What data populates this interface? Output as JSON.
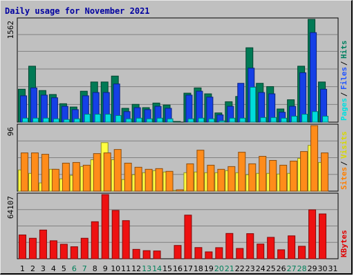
{
  "chart_data": {
    "type": "bar",
    "title": "Daily usage for November 2021",
    "categories": [
      "1",
      "2",
      "3",
      "4",
      "5",
      "6",
      "7",
      "8",
      "9",
      "10",
      "11",
      "12",
      "13",
      "14",
      "15",
      "16",
      "17",
      "18",
      "19",
      "20",
      "21",
      "22",
      "23",
      "24",
      "25",
      "26",
      "27",
      "28",
      "29",
      "30",
      "31"
    ],
    "weekend_days": [
      "6",
      "7",
      "13",
      "14",
      "20",
      "21",
      "27",
      "28"
    ],
    "panels": [
      {
        "name": "hits-files-pages",
        "max_label": "1562",
        "ymax": 1562,
        "legend": [
          {
            "text": "Pages",
            "color": "#00e0e0"
          },
          {
            "text": "Files",
            "color": "#2255ff"
          },
          {
            "text": "Hits",
            "color": "#008060"
          }
        ],
        "series": [
          {
            "name": "Hits",
            "color": "#007a55",
            "values": [
              500,
              850,
              480,
              420,
              280,
              230,
              470,
              610,
              610,
              700,
              210,
              270,
              220,
              290,
              260,
              10,
              440,
              520,
              430,
              140,
              310,
              390,
              1130,
              590,
              540,
              200,
              340,
              850,
              1562,
              610,
              0
            ]
          },
          {
            "name": "Files",
            "color": "#1540e6",
            "values": [
              400,
              520,
              410,
              370,
              240,
              190,
              400,
              450,
              450,
              580,
              160,
              220,
              190,
              240,
              210,
              5,
              410,
              470,
              380,
              110,
              240,
              590,
              820,
              450,
              430,
              150,
              240,
              750,
              1360,
              500,
              0
            ]
          },
          {
            "name": "Pages",
            "color": "#00dcdc",
            "values": [
              60,
              60,
              60,
              50,
              40,
              50,
              120,
              120,
              120,
              100,
              50,
              60,
              50,
              60,
              50,
              0,
              50,
              60,
              50,
              20,
              60,
              60,
              530,
              70,
              70,
              60,
              90,
              120,
              160,
              90,
              0
            ]
          }
        ]
      },
      {
        "name": "visits-sites",
        "max_label": "96",
        "ymax": 96,
        "legend": [
          {
            "text": "Sites",
            "color": "#ff7f00"
          },
          {
            "text": "Visits",
            "color": "#d8d800"
          }
        ],
        "series": [
          {
            "name": "Visits",
            "color": "#ffff40",
            "values": [
              31,
              26,
              12,
              32,
              18,
              23,
              36,
              46,
              71,
              46,
              17,
              24,
              27,
              30,
              28,
              1,
              27,
              28,
              27,
              27,
              30,
              27,
              24,
              26,
              26,
              25,
              26,
              48,
              67,
              42,
              0
            ]
          },
          {
            "name": "Sites",
            "color": "#ff8c1a",
            "values": [
              56,
              56,
              54,
              32,
              41,
              42,
              38,
              55,
              56,
              61,
              41,
              35,
              32,
              33,
              29,
              2,
              40,
              60,
              38,
              32,
              36,
              57,
              40,
              51,
              45,
              38,
              44,
              58,
              96,
              56,
              0
            ]
          }
        ]
      },
      {
        "name": "kbytes",
        "max_label": "64107",
        "ymax": 64107,
        "legend": [
          {
            "text": "KBytes",
            "color": "#e00000"
          }
        ],
        "series": [
          {
            "name": "KBytes",
            "color": "#ee1111",
            "values": [
              23800,
              20500,
              28700,
              18000,
              14500,
              12000,
              20500,
              37000,
              64107,
              48300,
              38100,
              9400,
              8100,
              7800,
              0,
              13300,
              43600,
              11200,
              6900,
              11100,
              25300,
              10300,
              25100,
              14700,
              21400,
              9000,
              22900,
              12500,
              48900,
              44800,
              0
            ]
          }
        ]
      }
    ]
  }
}
